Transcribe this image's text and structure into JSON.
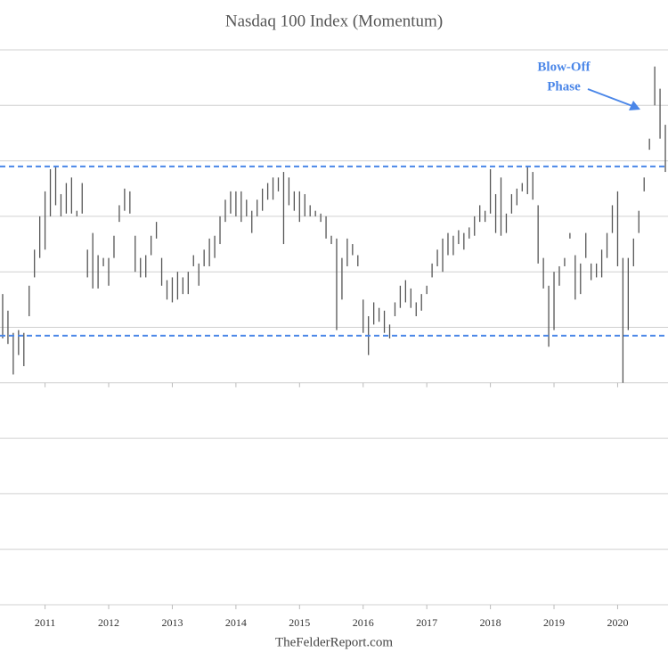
{
  "chart_data": {
    "type": "hilo",
    "title": "Nasdaq 100 Index (Momentum)",
    "source": "TheFelderReport.com",
    "categories": [
      null,
      null,
      null,
      null,
      null,
      null,
      null,
      null,
      "2011",
      null,
      null,
      null,
      null,
      null,
      null,
      null,
      null,
      null,
      null,
      null,
      "2012",
      null,
      null,
      null,
      null,
      null,
      null,
      null,
      null,
      null,
      null,
      null,
      "2013",
      null,
      null,
      null,
      null,
      null,
      null,
      null,
      null,
      null,
      null,
      null,
      "2014",
      null,
      null,
      null,
      null,
      null,
      null,
      null,
      null,
      null,
      null,
      null,
      "2015",
      null,
      null,
      null,
      null,
      null,
      null,
      null,
      null,
      null,
      null,
      null,
      "2016",
      null,
      null,
      null,
      null,
      null,
      null,
      null,
      null,
      null,
      null,
      null,
      "2017",
      null,
      null,
      null,
      null,
      null,
      null,
      null,
      null,
      null,
      null,
      null,
      "2018",
      null,
      null,
      null,
      null,
      null,
      null,
      null,
      null,
      null,
      null,
      null,
      "2019",
      null,
      null,
      null,
      null,
      null,
      null,
      null,
      null,
      null,
      null,
      null,
      "2020",
      null,
      null,
      null,
      null,
      null,
      null,
      null,
      null,
      null
    ],
    "highs": [
      56,
      53,
      49,
      49.5,
      49,
      57.5,
      64,
      70,
      74.5,
      78.5,
      79,
      74,
      76,
      77,
      71,
      76,
      64,
      67,
      63,
      62.5,
      62.5,
      66.5,
      72,
      75,
      74.5,
      66.5,
      62.5,
      63,
      66.5,
      69,
      62.5,
      58.5,
      59,
      60,
      59,
      60,
      63,
      61.5,
      64,
      66,
      66.5,
      70,
      73,
      74.5,
      74.5,
      74.5,
      73,
      71,
      73,
      75,
      76,
      77,
      77,
      78,
      77,
      74.5,
      74.5,
      74,
      72,
      71,
      70.5,
      70,
      66.5,
      66,
      62.5,
      66,
      65,
      63,
      55,
      52,
      54.5,
      53.5,
      53,
      50.5,
      54.5,
      57.5,
      58.5,
      57,
      54.5,
      56,
      57.5,
      61.5,
      64,
      66,
      67,
      66.5,
      67.5,
      67,
      68,
      70,
      72,
      71,
      78.5,
      74,
      77,
      70.5,
      74,
      75,
      76,
      79,
      78,
      72,
      62.5,
      57.5,
      60,
      61,
      62.5,
      67,
      63,
      61.5,
      67,
      61.5,
      61.5,
      64,
      67,
      72,
      74.5,
      62.5,
      62.5,
      66,
      71,
      77,
      84,
      97,
      93,
      86.5
    ],
    "lows": [
      48,
      47,
      41.5,
      45,
      43,
      52,
      59,
      62.5,
      64,
      70,
      72,
      70,
      70.5,
      70.5,
      70,
      70.5,
      59,
      57,
      57,
      61,
      57.5,
      62.5,
      69,
      71,
      70.5,
      60,
      59,
      59,
      63,
      66,
      57.5,
      55,
      54.5,
      55,
      56,
      56,
      61,
      57.5,
      61,
      61,
      62.5,
      65,
      69,
      70.5,
      70,
      69,
      70,
      67,
      70,
      71,
      73,
      73,
      74.5,
      65,
      72,
      71,
      69,
      70,
      70,
      70,
      69,
      66,
      65,
      49.5,
      55,
      61,
      63,
      61,
      49,
      45,
      50.5,
      51,
      49,
      48,
      52,
      53.5,
      54.5,
      53.5,
      52,
      53,
      56,
      59,
      61,
      60,
      63,
      63,
      65,
      64,
      66,
      66.5,
      69,
      69,
      70.5,
      67,
      66.5,
      67,
      70.5,
      72,
      74.5,
      74,
      73,
      61.5,
      57,
      46.5,
      49.5,
      57.5,
      61,
      66,
      55,
      56,
      62.5,
      58.5,
      59,
      59,
      62.5,
      67,
      61,
      40,
      49.5,
      61,
      67,
      74.5,
      82,
      90,
      84,
      78
    ],
    "color": "#555555",
    "ylim": [
      0,
      100
    ],
    "yticks": [
      0,
      10,
      20,
      30,
      40,
      50,
      60,
      70,
      80,
      90,
      100
    ],
    "grid": true,
    "hlines": [
      {
        "value": 79,
        "color": "#4a86e8",
        "style": "dashed"
      },
      {
        "value": 48.5,
        "color": "#4a86e8",
        "style": "dashed"
      }
    ],
    "annotation": {
      "lines": [
        "Blow-Off",
        "Phase"
      ],
      "color": "#4a86e8"
    }
  }
}
